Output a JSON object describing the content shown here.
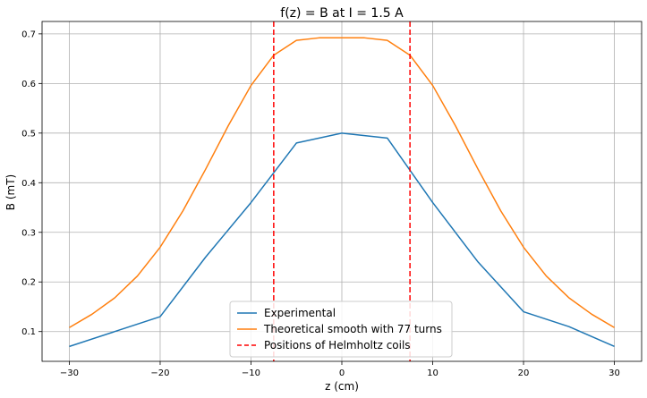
{
  "chart_data": {
    "type": "line",
    "title": "f(z) = B at I = 1.5 A",
    "xlabel": "z (cm)",
    "ylabel": "B (mT)",
    "xlim": [
      -33,
      33
    ],
    "ylim": [
      0.04,
      0.725
    ],
    "xticks": [
      -30,
      -20,
      -10,
      0,
      10,
      20,
      30
    ],
    "yticks": [
      0.1,
      0.2,
      0.3,
      0.4,
      0.5,
      0.6,
      0.7
    ],
    "xtick_labels": [
      "−30",
      "−20",
      "−10",
      "0",
      "10",
      "20",
      "30"
    ],
    "ytick_labels": [
      "0.1",
      "0.2",
      "0.3",
      "0.4",
      "0.5",
      "0.6",
      "0.7"
    ],
    "grid": true,
    "legend_position": "bottom-center",
    "series": [
      {
        "name": "Experimental",
        "color": "#1f77b4",
        "style": "solid",
        "x": [
          -30,
          -25,
          -20,
          -15,
          -10,
          -5,
          0,
          5,
          10,
          15,
          20,
          25,
          30
        ],
        "y": [
          0.07,
          0.1,
          0.13,
          0.25,
          0.36,
          0.48,
          0.5,
          0.49,
          0.36,
          0.24,
          0.14,
          0.11,
          0.07
        ]
      },
      {
        "name": "Theoretical smooth with 77 turns",
        "color": "#ff7f0e",
        "style": "solid",
        "x": [
          -30,
          -27.5,
          -25,
          -22.5,
          -20,
          -17.5,
          -15,
          -12.5,
          -10,
          -7.5,
          -5,
          -2.5,
          0,
          2.5,
          5,
          7.5,
          10,
          12.5,
          15,
          17.5,
          20,
          22.5,
          25,
          27.5,
          30
        ],
        "y": [
          0.108,
          0.135,
          0.168,
          0.212,
          0.27,
          0.343,
          0.427,
          0.515,
          0.596,
          0.657,
          0.687,
          0.692,
          0.692,
          0.692,
          0.687,
          0.657,
          0.596,
          0.515,
          0.427,
          0.343,
          0.27,
          0.212,
          0.168,
          0.135,
          0.108
        ]
      },
      {
        "name": "Positions of Helmholtz coils",
        "color": "#ff0000",
        "style": "dashed",
        "vlines": [
          -7.5,
          7.5
        ]
      }
    ]
  }
}
